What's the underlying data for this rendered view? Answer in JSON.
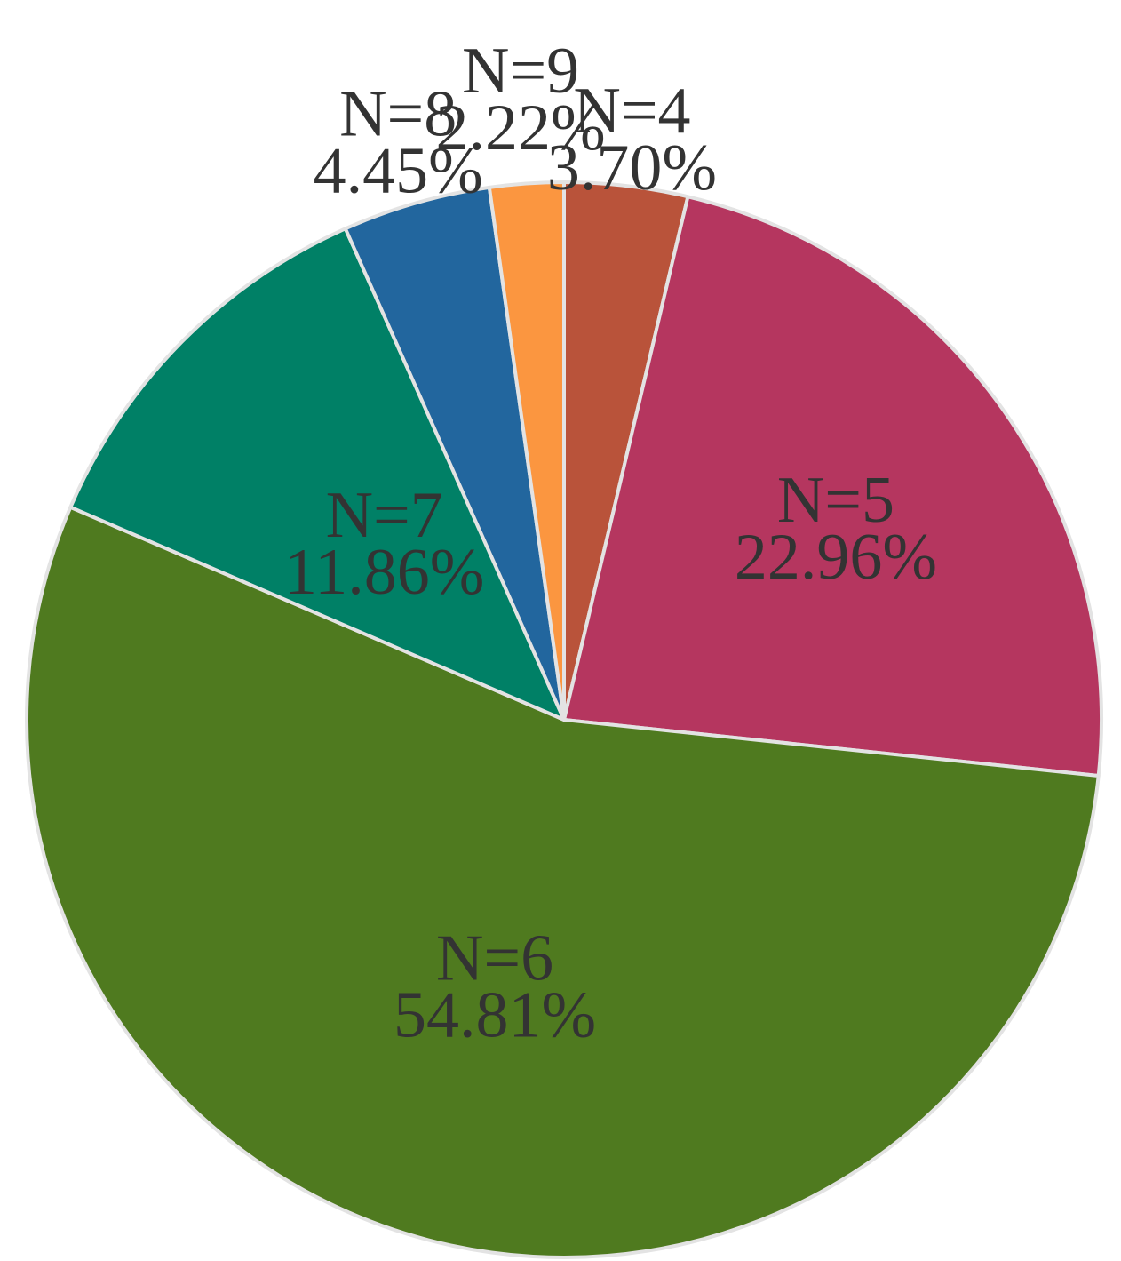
{
  "chart_data": {
    "type": "pie",
    "title": "",
    "start_angle_deg": 0,
    "direction": "clockwise",
    "slices": [
      {
        "label": "N=4",
        "value": 3.7,
        "value_label": "3.70%",
        "color": "#b9533a"
      },
      {
        "label": "N=5",
        "value": 22.96,
        "value_label": "22.96%",
        "color": "#b5365f"
      },
      {
        "label": "N=6",
        "value": 54.81,
        "value_label": "54.81%",
        "color": "#4f7a1f"
      },
      {
        "label": "N=7",
        "value": 11.86,
        "value_label": "11.86%",
        "color": "#008066"
      },
      {
        "label": "N=8",
        "value": 4.45,
        "value_label": "4.45%",
        "color": "#22669e"
      },
      {
        "label": "N=9",
        "value": 2.22,
        "value_label": "2.22%",
        "color": "#fb9640"
      }
    ],
    "legend": "none",
    "separator_color": "#e3e3e3"
  }
}
